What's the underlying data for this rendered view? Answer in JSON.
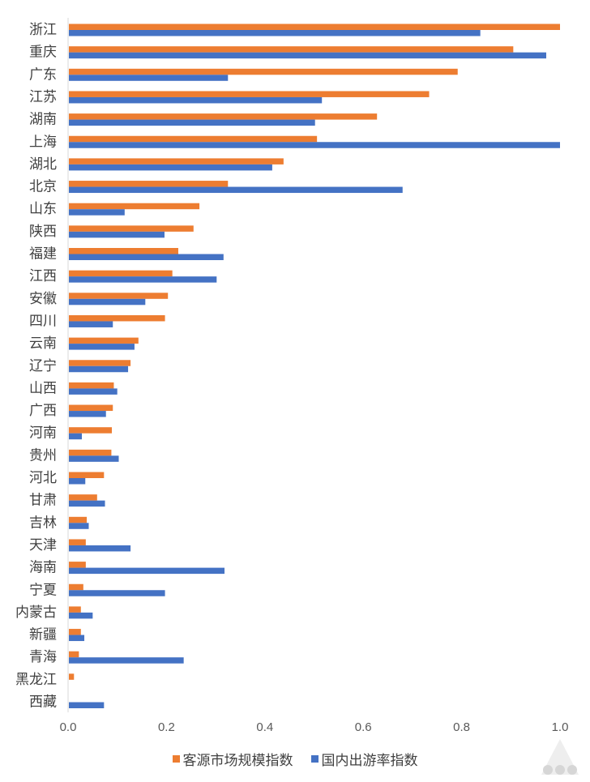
{
  "chart_data": {
    "type": "bar",
    "orientation": "horizontal",
    "categories": [
      "浙江",
      "重庆",
      "广东",
      "江苏",
      "湖南",
      "上海",
      "湖北",
      "北京",
      "山东",
      "陕西",
      "福建",
      "江西",
      "安徽",
      "四川",
      "云南",
      "辽宁",
      "山西",
      "广西",
      "河南",
      "贵州",
      "河北",
      "甘肃",
      "吉林",
      "天津",
      "海南",
      "宁夏",
      "内蒙古",
      "新疆",
      "青海",
      "黑龙江",
      "西藏"
    ],
    "series": [
      {
        "name": "客源市场规模指数",
        "color": "#ED7D31",
        "values": [
          1.0,
          0.905,
          0.792,
          0.734,
          0.628,
          0.506,
          0.438,
          0.325,
          0.267,
          0.255,
          0.224,
          0.212,
          0.203,
          0.197,
          0.143,
          0.127,
          0.093,
          0.091,
          0.089,
          0.088,
          0.073,
          0.059,
          0.038,
          0.036,
          0.036,
          0.031,
          0.026,
          0.026,
          0.022,
          0.012,
          0.0
        ]
      },
      {
        "name": "国内出游率指数",
        "color": "#4472C4",
        "values": [
          0.838,
          0.972,
          0.325,
          0.516,
          0.502,
          1.0,
          0.415,
          0.68,
          0.115,
          0.196,
          0.316,
          0.302,
          0.157,
          0.091,
          0.135,
          0.122,
          0.1,
          0.077,
          0.028,
          0.103,
          0.035,
          0.075,
          0.042,
          0.127,
          0.318,
          0.197,
          0.05,
          0.033,
          0.235,
          0.0,
          0.073
        ]
      }
    ],
    "xlim": [
      0,
      1.0
    ],
    "xticks": [
      "0.0",
      "0.2",
      "0.4",
      "0.6",
      "0.8",
      "1.0"
    ],
    "grid": false,
    "legend_position": "bottom"
  }
}
